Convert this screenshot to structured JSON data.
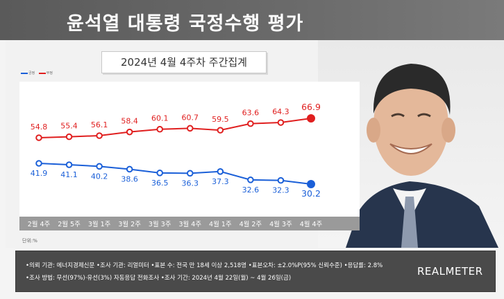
{
  "title": "윤석열 대통령 국정수행 평가",
  "subtitle": "2024년 4월 4주차 주간집계",
  "legend": [
    {
      "label": "긍정",
      "color": "#1a5fd8"
    },
    {
      "label": "부정",
      "color": "#e01f1f"
    }
  ],
  "unit_label": "단위:%",
  "footer": {
    "line1": "•의뢰 기관: 에너지경제신문 •조사 기관: 리얼미터 •표본 수: 전국 만 18세 이상 2,518명 •표본오차: ±2.0%P(95% 신뢰수준) •응답률: 2.8%",
    "line2": "•조사 방법: 무선(97%)·유선(3%) 자동응답 전화조사 •조사 기간: 2024년 4월 22일(월) ~ 4월 26일(금)",
    "brand": "REALMETER"
  },
  "colors": {
    "positive": "#1a5fd8",
    "negative": "#e01f1f",
    "axis_band": "#9a9a9a"
  },
  "chart_data": {
    "type": "line",
    "categories": [
      "2월 4주",
      "2월 5주",
      "3월 1주",
      "3월 2주",
      "3월 3주",
      "3월 4주",
      "4월 1주",
      "4월 2주",
      "4월 3주",
      "4월 4주"
    ],
    "series": [
      {
        "name": "부정",
        "values": [
          54.8,
          55.4,
          56.1,
          58.4,
          60.1,
          60.7,
          59.5,
          63.6,
          64.3,
          66.9
        ],
        "labels": [
          "54.8",
          "55.4",
          "56.1",
          "58.4",
          "60.1",
          "60.7",
          "59.5",
          "63.6",
          "64.3",
          "66.9"
        ]
      },
      {
        "name": "긍정",
        "values": [
          41.9,
          41.1,
          40.2,
          38.6,
          36.5,
          36.3,
          37.3,
          32.6,
          32.3,
          30.2
        ],
        "labels": [
          "41.9",
          "41.1",
          "40.2",
          "38.6",
          "36.5",
          "36.3",
          "37.3",
          "32.6",
          "32.3",
          "30.2"
        ]
      }
    ],
    "grid": false,
    "legend_position": "top-left"
  }
}
